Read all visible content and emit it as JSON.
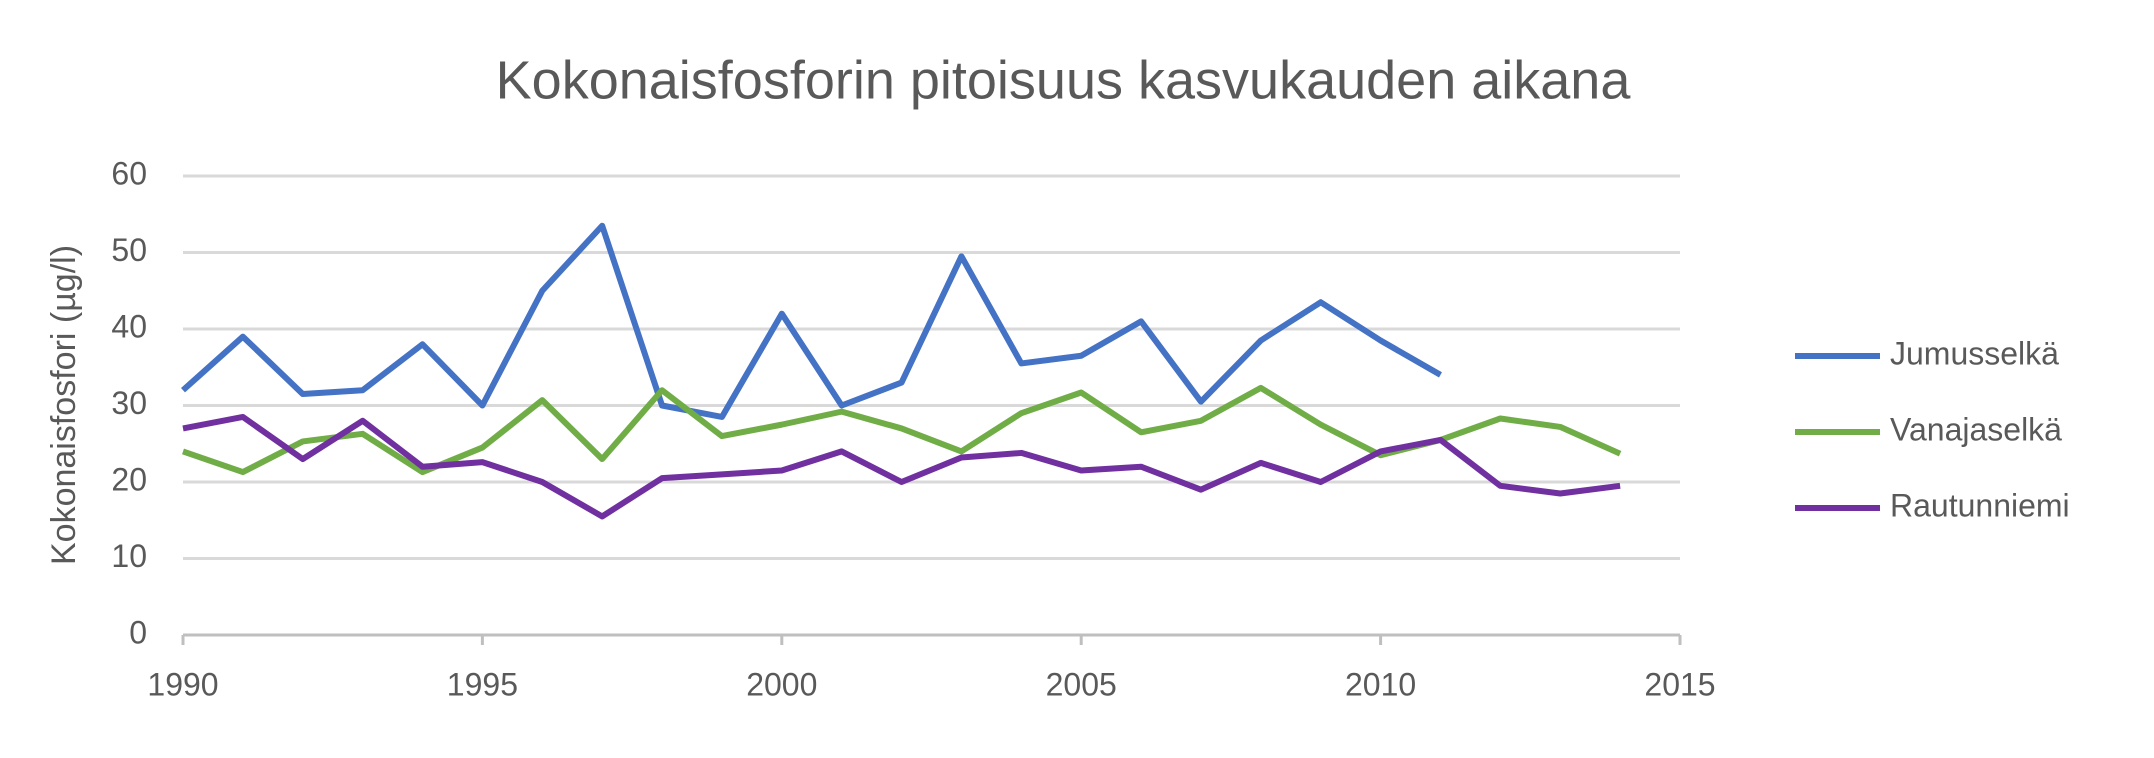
{
  "chart_data": {
    "type": "line",
    "title": "Kokonaisfosforin pitoisuus kasvukauden aikana",
    "y_label": "Kokonaisfosfori (µg/l)",
    "x": [
      1990,
      1991,
      1992,
      1993,
      1994,
      1995,
      1996,
      1997,
      1998,
      1999,
      2000,
      2001,
      2002,
      2003,
      2004,
      2005,
      2006,
      2007,
      2008,
      2009,
      2010,
      2011,
      2012,
      2013,
      2014
    ],
    "series": [
      {
        "name": "Jumusselkä",
        "color": "#4472c4",
        "values": [
          32,
          39,
          31.5,
          32,
          38,
          30,
          45,
          53.5,
          30,
          28.5,
          42,
          30,
          33,
          49.5,
          35.5,
          36.5,
          41,
          30.5,
          38.5,
          43.5,
          38.5,
          34,
          null,
          null,
          null
        ]
      },
      {
        "name": "Vanajaselkä",
        "color": "#70ad47",
        "values": [
          24,
          21.3,
          25.3,
          26.3,
          21.3,
          24.5,
          30.7,
          23,
          32,
          26,
          27.5,
          29.2,
          27,
          24,
          29,
          31.7,
          26.5,
          28,
          32.3,
          27.5,
          23.5,
          25.5,
          28.3,
          27.2,
          23.7
        ]
      },
      {
        "name": "Rautunniemi",
        "color": "#7030a0",
        "values": [
          27,
          28.5,
          23,
          28,
          22,
          22.6,
          20,
          15.5,
          20.5,
          21,
          21.5,
          24,
          20,
          23.2,
          23.8,
          21.5,
          22,
          19,
          22.5,
          20,
          24,
          25.5,
          19.5,
          18.5,
          19.5
        ]
      }
    ],
    "xlim": [
      1990,
      2015
    ],
    "xticks": [
      1990,
      1995,
      2000,
      2005,
      2010,
      2015
    ],
    "ylim": [
      0,
      60
    ],
    "yticks": [
      0,
      10,
      20,
      30,
      40,
      50,
      60
    ],
    "grid": true,
    "legend": "right"
  }
}
